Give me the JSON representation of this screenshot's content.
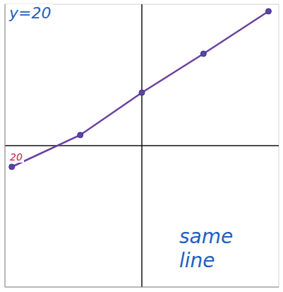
{
  "chart_data": {
    "type": "line",
    "x": [
      -19,
      -9,
      0,
      9,
      18.5
    ],
    "values": [
      -3,
      1.5,
      7.5,
      13,
      19
    ],
    "color": "#6a3fa0",
    "marker": "circle",
    "xlim": [
      -20,
      20
    ],
    "ylim": [
      -20,
      20
    ],
    "xticks": [
      -20,
      -19,
      -18,
      -17,
      -16,
      -15,
      -14,
      -13,
      -12,
      -11,
      -10,
      -9,
      -8,
      -7,
      -6,
      -5,
      -4,
      -3,
      -2,
      -1,
      0,
      1,
      2,
      3,
      4,
      5,
      6,
      7,
      8,
      9,
      10,
      11,
      12,
      13,
      14,
      15,
      16,
      17,
      18,
      19,
      20
    ],
    "yticks": [
      -20,
      -19,
      -18,
      -17,
      -16,
      -15,
      -14,
      -13,
      -12,
      -11,
      -10,
      -9,
      -8,
      -7,
      -6,
      -5,
      -4,
      -3,
      -2,
      -1,
      0,
      1,
      2,
      3,
      4,
      5,
      6,
      7,
      8,
      9,
      10,
      11,
      12,
      13,
      14,
      15,
      16,
      17,
      18,
      19,
      20
    ],
    "grid": true,
    "tick_labels": false,
    "annotations": [
      "y=20",
      "20",
      "same line"
    ]
  }
}
